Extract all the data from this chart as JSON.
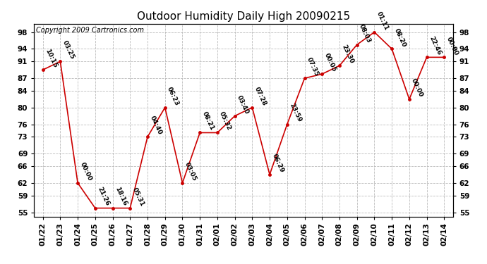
{
  "title": "Outdoor Humidity Daily High 20090215",
  "copyright": "Copyright 2009 Cartronics.com",
  "dates": [
    "01/22",
    "01/23",
    "01/24",
    "01/25",
    "01/26",
    "01/27",
    "01/28",
    "01/29",
    "01/30",
    "01/31",
    "02/01",
    "02/02",
    "02/03",
    "02/04",
    "02/05",
    "02/06",
    "02/07",
    "02/08",
    "02/09",
    "02/10",
    "02/11",
    "02/12",
    "02/13",
    "02/14"
  ],
  "values": [
    89,
    91,
    62,
    56,
    56,
    56,
    73,
    80,
    62,
    74,
    74,
    78,
    80,
    64,
    76,
    87,
    88,
    90,
    95,
    98,
    94,
    82,
    92,
    92
  ],
  "labels": [
    "10:15",
    "03:25",
    "00:00",
    "21:26",
    "18:16",
    "05:31",
    "04:40",
    "06:23",
    "03:05",
    "08:21",
    "05:32",
    "03:40",
    "07:28",
    "06:29",
    "23:59",
    "07:35",
    "00:05",
    "23:30",
    "08:03",
    "01:11",
    "08:20",
    "00:00",
    "22:46",
    "00:00"
  ],
  "line_color": "#cc0000",
  "marker_color": "#cc0000",
  "bg_color": "#ffffff",
  "grid_color": "#bbbbbb",
  "yticks": [
    55,
    59,
    62,
    66,
    69,
    73,
    76,
    80,
    84,
    87,
    91,
    94,
    98
  ],
  "ylim": [
    54,
    100
  ],
  "title_fontsize": 11,
  "label_fontsize": 6.5,
  "copyright_fontsize": 7,
  "tick_fontsize": 7.5
}
